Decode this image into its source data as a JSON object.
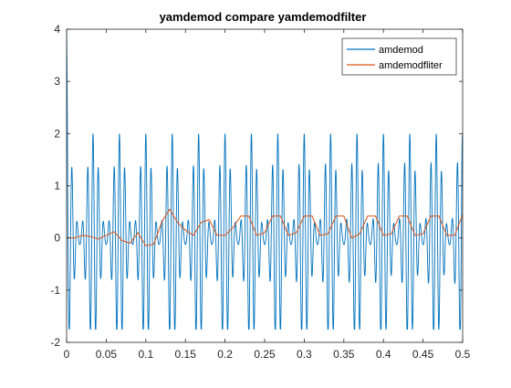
{
  "chart_data": {
    "type": "line",
    "title": "yamdemod compare yamdemodfilter",
    "xlabel": "",
    "ylabel": "",
    "xlim": [
      0,
      0.5
    ],
    "ylim": [
      -2,
      4
    ],
    "xticks": [
      0,
      0.05,
      0.1,
      0.15,
      0.2,
      0.25,
      0.3,
      0.35,
      0.4,
      0.45,
      0.5
    ],
    "xtick_labels": [
      "0",
      "0.05",
      "0.1",
      "0.15",
      "0.2",
      "0.25",
      "0.3",
      "0.35",
      "0.4",
      "0.45",
      "0.5"
    ],
    "yticks": [
      -2,
      -1,
      0,
      1,
      2,
      3,
      4
    ],
    "ytick_labels": [
      "-2",
      "-1",
      "0",
      "1",
      "2",
      "3",
      "4"
    ],
    "grid": false,
    "legend_position": "top-right",
    "series": [
      {
        "name": "amdemod",
        "color": "#0072BD",
        "envelope_period": 0.0333,
        "envelope_peak": 2,
        "envelope_trough": -1.75,
        "start_value": 4,
        "end_value": 2
      },
      {
        "name": "amdemodfliter",
        "color": "#D95319",
        "points": [
          [
            0,
            0
          ],
          [
            0.01,
            0
          ],
          [
            0.02,
            0.05
          ],
          [
            0.03,
            0.03
          ],
          [
            0.04,
            -0.02
          ],
          [
            0.05,
            0.05
          ],
          [
            0.06,
            0.12
          ],
          [
            0.07,
            -0.05
          ],
          [
            0.08,
            -0.1
          ],
          [
            0.09,
            0.1
          ],
          [
            0.1,
            -0.15
          ],
          [
            0.11,
            -0.12
          ],
          [
            0.12,
            0.3
          ],
          [
            0.13,
            0.55
          ],
          [
            0.14,
            0.3
          ],
          [
            0.15,
            0.15
          ],
          [
            0.16,
            0.05
          ],
          [
            0.17,
            0.3
          ],
          [
            0.18,
            0.35
          ],
          [
            0.19,
            0.05
          ],
          [
            0.2,
            0.05
          ],
          [
            0.21,
            0.2
          ],
          [
            0.22,
            0.42
          ],
          [
            0.23,
            0.42
          ],
          [
            0.24,
            0.05
          ],
          [
            0.25,
            0.1
          ],
          [
            0.26,
            0.42
          ],
          [
            0.27,
            0.42
          ],
          [
            0.28,
            0.05
          ],
          [
            0.29,
            0.1
          ],
          [
            0.3,
            0.42
          ],
          [
            0.31,
            0.42
          ],
          [
            0.32,
            0.05
          ],
          [
            0.33,
            0.08
          ],
          [
            0.34,
            0.42
          ],
          [
            0.35,
            0.42
          ],
          [
            0.36,
            0.0
          ],
          [
            0.37,
            0.08
          ],
          [
            0.38,
            0.42
          ],
          [
            0.39,
            0.42
          ],
          [
            0.4,
            0.05
          ],
          [
            0.41,
            0.08
          ],
          [
            0.42,
            0.42
          ],
          [
            0.43,
            0.42
          ],
          [
            0.44,
            0.05
          ],
          [
            0.45,
            0.08
          ],
          [
            0.46,
            0.42
          ],
          [
            0.47,
            0.42
          ],
          [
            0.48,
            0.05
          ],
          [
            0.49,
            0.05
          ],
          [
            0.5,
            0.45
          ]
        ]
      }
    ]
  }
}
